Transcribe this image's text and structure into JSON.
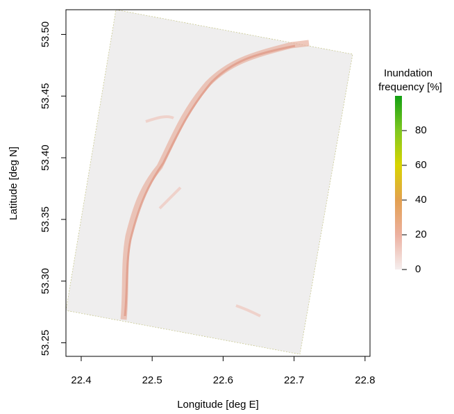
{
  "chart_data": {
    "type": "raster",
    "x_label": "Longitude [deg E]",
    "y_label": "Latitude [deg N]",
    "xlim": [
      22.3785,
      22.807
    ],
    "xticks": [
      22.4,
      22.5,
      22.6,
      22.7,
      22.8
    ],
    "ylim": [
      53.239,
      53.52
    ],
    "yticks": [
      {
        "value": 53.25,
        "label": "53.25"
      },
      {
        "value": 53.3,
        "label": "53.30"
      },
      {
        "value": 53.35,
        "label": "53.35"
      },
      {
        "value": 53.4,
        "label": "53.40"
      },
      {
        "value": 53.45,
        "label": "53.45"
      },
      {
        "value": 53.5,
        "label": "53.50"
      }
    ],
    "colorbar": {
      "title": [
        "Inundation",
        "frequency [%]"
      ],
      "lim": [
        0,
        100
      ],
      "ticks": [
        0,
        20,
        40,
        60,
        80
      ]
    }
  }
}
